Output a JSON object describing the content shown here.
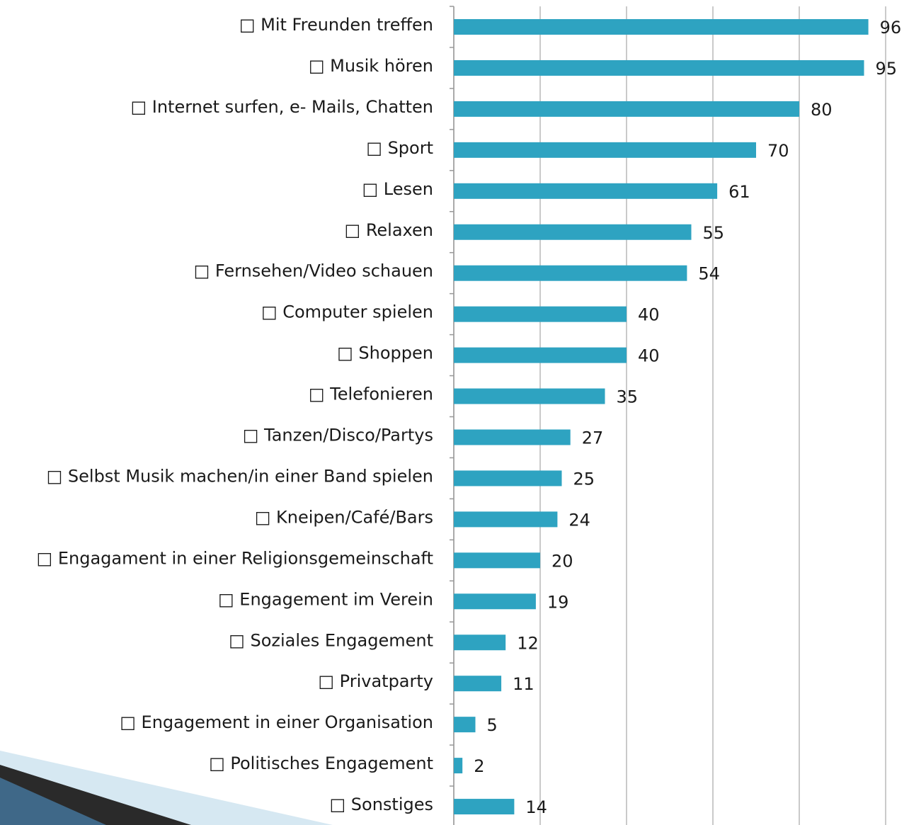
{
  "chart_data": {
    "type": "bar",
    "orientation": "horizontal",
    "categories": [
      "□ Mit Freunden treffen",
      "□ Musik hören",
      "□ Internet surfen, e- Mails, Chatten",
      "□ Sport",
      "□ Lesen",
      "□ Relaxen",
      "□ Fernsehen/Video schauen",
      "□ Computer spielen",
      "□ Shoppen",
      "□ Telefonieren",
      "□ Tanzen/Disco/Partys",
      "□ Selbst Musik machen/in einer Band spielen",
      "□ Kneipen/Café/Bars",
      "□ Engagament in einer Religionsgemeinschaft",
      "□ Engagement im Verein",
      "□ Soziales Engagement",
      "□ Privatparty",
      "□ Engagement in einer Organisation",
      "□ Politisches Engagement",
      "□ Sonstiges"
    ],
    "values": [
      96,
      95,
      80,
      70,
      61,
      55,
      54,
      40,
      40,
      35,
      27,
      25,
      24,
      20,
      19,
      12,
      11,
      5,
      2,
      14
    ],
    "color": "#2ea3c1",
    "xlim": [
      0,
      100
    ],
    "xticks": [
      0,
      20,
      40,
      60,
      80,
      100
    ],
    "grid": true
  }
}
